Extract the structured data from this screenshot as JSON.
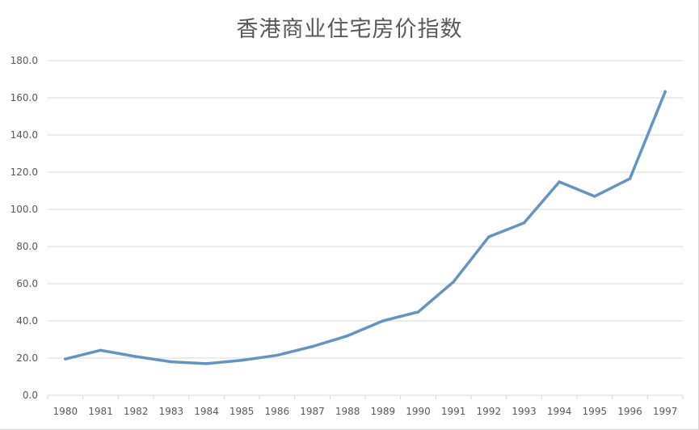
{
  "chart_data": {
    "type": "line",
    "title": "香港商业住宅房价指数",
    "xlabel": "",
    "ylabel": "",
    "categories": [
      "1980",
      "1981",
      "1982",
      "1983",
      "1984",
      "1985",
      "1986",
      "1987",
      "1988",
      "1989",
      "1990",
      "1991",
      "1992",
      "1993",
      "1994",
      "1995",
      "1996",
      "1997"
    ],
    "y_ticks": [
      "0.0",
      "20.0",
      "40.0",
      "60.0",
      "80.0",
      "100.0",
      "120.0",
      "140.0",
      "160.0",
      "180.0"
    ],
    "ylim": [
      0,
      180
    ],
    "grid": true,
    "legend": "none",
    "series": [
      {
        "color": "#6494c2",
        "values": [
          19.5,
          24.2,
          20.8,
          18.0,
          17.0,
          18.8,
          21.5,
          26.2,
          32.0,
          40.0,
          44.8,
          61.0,
          85.2,
          92.7,
          114.8,
          107.0,
          116.5,
          163.3
        ]
      }
    ]
  }
}
